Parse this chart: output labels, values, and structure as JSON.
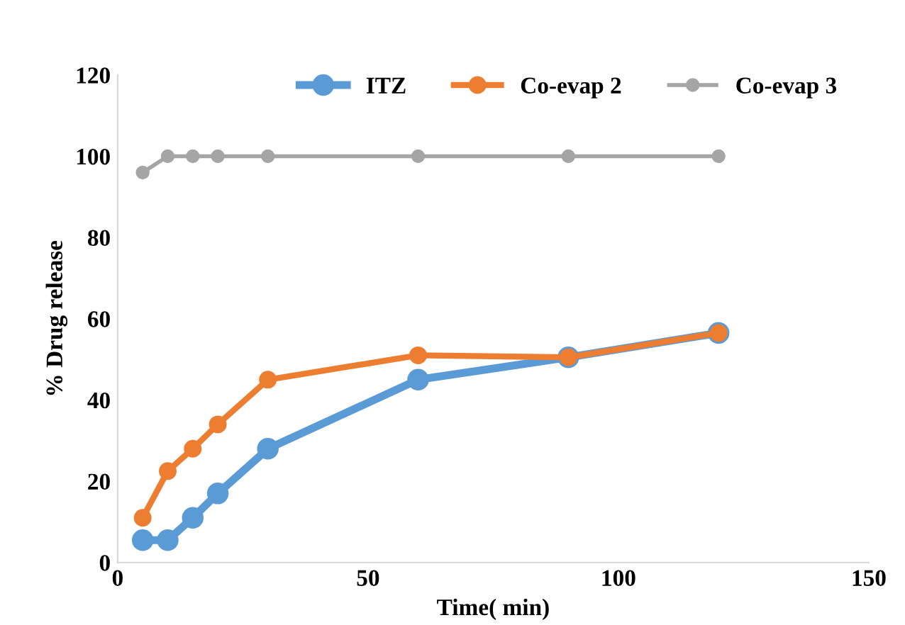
{
  "chart_data": {
    "type": "line",
    "xlabel": "Time( min)",
    "ylabel": "% Drug release",
    "x": [
      5,
      10,
      15,
      20,
      30,
      60,
      90,
      120
    ],
    "series": [
      {
        "name": "ITZ",
        "color": "#5b9bd5",
        "values": [
          5.5,
          5.5,
          11,
          17,
          28,
          45,
          50.5,
          56.5
        ]
      },
      {
        "name": "Co-evap 2",
        "color": "#ed7d31",
        "values": [
          11,
          22.5,
          28,
          34,
          45,
          51,
          50.5,
          56.5
        ]
      },
      {
        "name": "Co-evap 3",
        "color": "#a5a5a5",
        "values": [
          96,
          100,
          100,
          100,
          100,
          100,
          100,
          100
        ]
      }
    ],
    "xlim": [
      0,
      150
    ],
    "xticks": [
      0,
      50,
      100,
      150
    ],
    "ylim": [
      0,
      120
    ],
    "yticks": [
      0,
      20,
      40,
      60,
      80,
      100,
      120
    ],
    "grid": false,
    "legend": "top",
    "marker": "circle",
    "line_style": "solid"
  }
}
